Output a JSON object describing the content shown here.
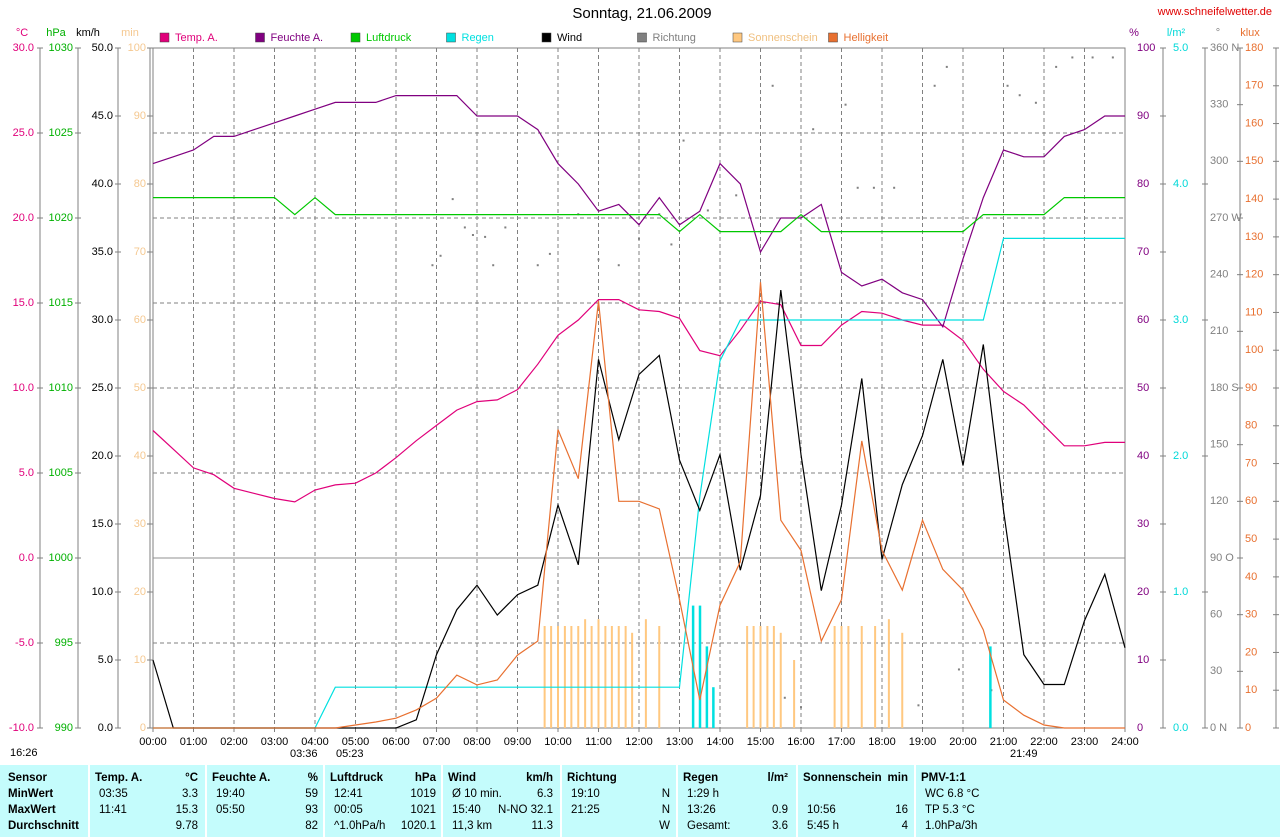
{
  "chart_data": {
    "type": "line",
    "title": "Sonntag, 21.06.2009",
    "source": "www.schneifelwetter.de",
    "annotations": [
      "16:26",
      "03:36",
      "05:23",
      "21:49"
    ],
    "grid": true,
    "x": [
      0,
      0.5,
      1,
      1.5,
      2,
      2.5,
      3,
      3.5,
      4,
      4.5,
      5,
      5.5,
      6,
      6.5,
      7,
      7.5,
      8,
      8.5,
      9,
      9.5,
      10,
      10.5,
      11,
      11.5,
      12,
      12.5,
      13,
      13.5,
      14,
      14.5,
      15,
      15.5,
      16,
      16.5,
      17,
      17.5,
      18,
      18.5,
      19,
      19.5,
      20,
      20.5,
      21,
      21.5,
      22,
      22.5,
      23,
      23.5,
      24
    ],
    "xlim": [
      0,
      24
    ],
    "xticks": [
      {
        "value": 0,
        "label": "00:00"
      },
      {
        "value": 1,
        "label": "01:00"
      },
      {
        "value": 2,
        "label": "02:00"
      },
      {
        "value": 3,
        "label": "03:00"
      },
      {
        "value": 4,
        "label": "04:00"
      },
      {
        "value": 5,
        "label": "05:00"
      },
      {
        "value": 6,
        "label": "06:00"
      },
      {
        "value": 7,
        "label": "07:00"
      },
      {
        "value": 8,
        "label": "08:00"
      },
      {
        "value": 9,
        "label": "09:00"
      },
      {
        "value": 10,
        "label": "10:00"
      },
      {
        "value": 11,
        "label": "11:00"
      },
      {
        "value": 12,
        "label": "12:00"
      },
      {
        "value": 13,
        "label": "13:00"
      },
      {
        "value": 14,
        "label": "14:00"
      },
      {
        "value": 15,
        "label": "15:00"
      },
      {
        "value": 16,
        "label": "16:00"
      },
      {
        "value": 17,
        "label": "17:00"
      },
      {
        "value": 18,
        "label": "18:00"
      },
      {
        "value": 19,
        "label": "19:00"
      },
      {
        "value": 20,
        "label": "20:00"
      },
      {
        "value": 21,
        "label": "21:00"
      },
      {
        "value": 22,
        "label": "22:00"
      },
      {
        "value": 23,
        "label": "23:00"
      },
      {
        "value": 24,
        "label": "24:00"
      }
    ],
    "axes": [
      {
        "id": "temp",
        "label": "°C",
        "color": "#e0007a",
        "lim": [
          -10,
          30
        ],
        "ticks": [
          {
            "value": -10,
            "label": "-10.0"
          },
          {
            "value": -5,
            "label": "-5.0"
          },
          {
            "value": 0,
            "label": "0.0"
          },
          {
            "value": 5,
            "label": "5.0"
          },
          {
            "value": 10,
            "label": "10.0"
          },
          {
            "value": 15,
            "label": "15.0"
          },
          {
            "value": 20,
            "label": "20.0"
          },
          {
            "value": 25,
            "label": "25.0"
          },
          {
            "value": 30,
            "label": "30.0"
          }
        ]
      },
      {
        "id": "pressure",
        "label": "hPa",
        "color": "#00b000",
        "lim": [
          990,
          1030
        ],
        "ticks": [
          990,
          995,
          1000,
          1005,
          1010,
          1015,
          1020,
          1025,
          1030
        ]
      },
      {
        "id": "wind",
        "label": "km/h",
        "color": "#000000",
        "lim": [
          0,
          50
        ],
        "ticks": [
          {
            "value": 0,
            "label": "0.0"
          },
          {
            "value": 5,
            "label": "5.0"
          },
          {
            "value": 10,
            "label": "10.0"
          },
          {
            "value": 15,
            "label": "15.0"
          },
          {
            "value": 20,
            "label": "20.0"
          },
          {
            "value": 25,
            "label": "25.0"
          },
          {
            "value": 30,
            "label": "30.0"
          },
          {
            "value": 35,
            "label": "35.0"
          },
          {
            "value": 40,
            "label": "40.0"
          },
          {
            "value": 45,
            "label": "45.0"
          },
          {
            "value": 50,
            "label": "50.0"
          }
        ]
      },
      {
        "id": "sun",
        "label": "min",
        "color": "#f5c890",
        "lim": [
          0,
          100
        ],
        "ticks": [
          0,
          10,
          20,
          30,
          40,
          50,
          60,
          70,
          80,
          90,
          100
        ]
      },
      {
        "id": "humidity",
        "label": "%",
        "color": "#800080",
        "lim": [
          0,
          100
        ],
        "ticks": [
          0,
          10,
          20,
          30,
          40,
          50,
          60,
          70,
          80,
          90,
          100
        ]
      },
      {
        "id": "rain",
        "label": "l/m²",
        "color": "#00d8d8",
        "lim": [
          0,
          5
        ],
        "ticks": [
          {
            "value": 0,
            "label": "0.0"
          },
          {
            "value": 1,
            "label": "1.0"
          },
          {
            "value": 2,
            "label": "2.0"
          },
          {
            "value": 3,
            "label": "3.0"
          },
          {
            "value": 4,
            "label": "4.0"
          },
          {
            "value": 5,
            "label": "5.0"
          }
        ]
      },
      {
        "id": "dir",
        "label": "°",
        "color": "#808080",
        "lim": [
          0,
          360
        ],
        "ticks": [
          {
            "value": 0,
            "label": "0 N"
          },
          30,
          60,
          {
            "value": 90,
            "label": "90 O"
          },
          120,
          150,
          {
            "value": 180,
            "label": "180 S"
          },
          210,
          240,
          {
            "value": 270,
            "label": "270 W"
          },
          300,
          330,
          {
            "value": 360,
            "label": "360 N"
          }
        ]
      },
      {
        "id": "bright",
        "label": "klux",
        "color": "#e87030",
        "lim": [
          0,
          180
        ],
        "ticks": [
          0,
          10,
          20,
          30,
          40,
          50,
          60,
          70,
          80,
          90,
          100,
          110,
          120,
          130,
          140,
          150,
          160,
          170,
          180
        ]
      }
    ],
    "series": [
      {
        "name": "Temp. A.",
        "color": "#e0007a",
        "axis": "temp",
        "style": "line",
        "values": [
          7.5,
          6.4,
          5.3,
          4.9,
          4.1,
          3.8,
          3.5,
          3.3,
          4.0,
          4.3,
          4.4,
          5.0,
          5.9,
          6.9,
          7.8,
          8.7,
          9.2,
          9.3,
          9.9,
          11.4,
          13.1,
          14.0,
          15.2,
          15.2,
          14.6,
          14.5,
          14.1,
          12.2,
          11.9,
          13.4,
          15.1,
          14.9,
          12.5,
          12.5,
          13.7,
          14.5,
          14.4,
          14.0,
          13.7,
          13.7,
          12.8,
          11.1,
          9.8,
          9.0,
          7.8,
          6.6,
          6.6,
          6.8,
          6.8
        ]
      },
      {
        "name": "Feuchte A.",
        "color": "#800080",
        "axis": "humidity",
        "style": "line",
        "values": [
          83,
          84,
          85,
          87,
          87,
          88,
          89,
          90,
          91,
          92,
          92,
          92,
          93,
          93,
          93,
          93,
          90,
          90,
          90,
          88,
          83,
          80,
          76,
          77,
          74,
          78,
          74,
          76,
          83,
          80,
          70,
          75,
          75,
          77,
          67,
          65,
          66,
          64,
          63,
          59,
          69,
          78,
          85,
          84,
          84,
          87,
          88,
          90,
          90
        ]
      },
      {
        "name": "Luftdruck",
        "color": "#00c800",
        "axis": "pressure",
        "style": "line",
        "values": [
          1021.2,
          1021.2,
          1021.2,
          1021.2,
          1021.2,
          1021.2,
          1021.2,
          1020.2,
          1021.2,
          1020.2,
          1020.2,
          1020.2,
          1020.2,
          1020.2,
          1020.2,
          1020.2,
          1020.2,
          1020.2,
          1020.2,
          1020.2,
          1020.2,
          1020.2,
          1020.2,
          1020.2,
          1020.2,
          1020.2,
          1019.2,
          1020.2,
          1019.2,
          1019.2,
          1019.2,
          1019.2,
          1020.2,
          1019.2,
          1019.2,
          1019.2,
          1019.2,
          1019.2,
          1019.2,
          1019.2,
          1019.2,
          1020.2,
          1020.2,
          1020.2,
          1020.2,
          1021.2,
          1021.2,
          1021.2,
          1021.2
        ]
      },
      {
        "name": "Regen",
        "color": "#00e0e0",
        "axis": "rain",
        "style": "line",
        "values": [
          0,
          0,
          0,
          0,
          0,
          0,
          0,
          0,
          0,
          0.3,
          0.3,
          0.3,
          0.3,
          0.3,
          0.3,
          0.3,
          0.3,
          0.3,
          0.3,
          0.3,
          0.3,
          0.3,
          0.3,
          0.3,
          0.3,
          0.3,
          0.3,
          1.7,
          2.7,
          3.0,
          3.0,
          3.0,
          3.0,
          3.0,
          3.0,
          3.0,
          3.0,
          3.0,
          3.0,
          3.0,
          3.0,
          3.0,
          3.6,
          3.6,
          3.6,
          3.6,
          3.6,
          3.6,
          3.6
        ],
        "bars_x": [
          13.33,
          13.5,
          13.67,
          13.83,
          20.67
        ],
        "bars": [
          0.9,
          0.9,
          0.6,
          0.3,
          0.6
        ]
      },
      {
        "name": "Wind",
        "color": "#000000",
        "axis": "wind",
        "style": "line",
        "values": [
          5.0,
          0,
          0,
          0,
          0,
          0,
          0,
          0,
          0,
          0,
          0,
          0,
          0,
          0.6,
          5.4,
          8.7,
          10.5,
          8.3,
          9.8,
          10.5,
          16.4,
          12.0,
          27.1,
          21.2,
          26.0,
          27.4,
          19.7,
          16.0,
          20.1,
          11.6,
          17.1,
          32.2,
          20.1,
          10.1,
          16.4,
          25.7,
          12.4,
          17.9,
          21.5,
          27.1,
          19.3,
          28.2,
          16.0,
          5.4,
          3.2,
          3.2,
          7.9,
          11.3,
          5.9
        ]
      },
      {
        "name": "Richtung",
        "color": "#808080",
        "axis": "dir",
        "style": "scatter",
        "x": [
          6.9,
          7.1,
          7.4,
          7.7,
          7.9,
          8.2,
          8.4,
          8.7,
          9.5,
          9.8,
          10.5,
          11.0,
          11.5,
          12.0,
          12.5,
          12.8,
          13.1,
          13.7,
          14.4,
          15.3,
          15.6,
          16.0,
          16.3,
          17.1,
          17.4,
          17.8,
          18.3,
          18.9,
          19.3,
          19.6,
          19.9,
          20.7,
          21.1,
          21.4,
          21.8,
          22.3,
          22.7,
          23.2,
          23.7
        ],
        "values": [
          245,
          250,
          280,
          265,
          261,
          260,
          245,
          265,
          245,
          251,
          272,
          248,
          245,
          259,
          272,
          256,
          311,
          274,
          282,
          340,
          16,
          11,
          317,
          330,
          286,
          286,
          286,
          12,
          340,
          350,
          31,
          20,
          340,
          335,
          331,
          350,
          355,
          355,
          355
        ]
      },
      {
        "name": "Sonnenschein",
        "color": "#ffc880",
        "axis": "sun",
        "style": "bar",
        "x": [
          9.67,
          9.83,
          10.0,
          10.17,
          10.33,
          10.5,
          10.67,
          10.83,
          11.0,
          11.17,
          11.33,
          11.5,
          11.67,
          11.83,
          12.17,
          12.5,
          14.67,
          14.83,
          15.0,
          15.17,
          15.33,
          15.5,
          15.83,
          16.83,
          17.0,
          17.17,
          17.5,
          17.83,
          18.17,
          18.5
        ],
        "values": [
          15,
          15,
          15,
          15,
          15,
          15,
          16,
          15,
          16,
          15,
          15,
          15,
          15,
          14,
          16,
          15,
          15,
          15,
          15,
          15,
          15,
          14,
          10,
          15,
          15,
          15,
          15,
          15,
          16,
          14
        ]
      },
      {
        "name": "Helligkeit",
        "color": "#e87030",
        "axis": "bright",
        "style": "line",
        "values": [
          0,
          0,
          0,
          0,
          0,
          0,
          0,
          0,
          0,
          0,
          0.8,
          1.6,
          2.6,
          4.8,
          7.9,
          14,
          11.4,
          12.7,
          19.3,
          23,
          79,
          66,
          113,
          60,
          60,
          58,
          34,
          7.4,
          32.5,
          44,
          118,
          55,
          47,
          23,
          34,
          76,
          47,
          36.5,
          55,
          42,
          36.5,
          26,
          7.4,
          3.4,
          0.8,
          0,
          0,
          0,
          0
        ]
      }
    ]
  },
  "table": {
    "columns": [
      {
        "title": "Sensor"
      },
      {
        "title": "Temp. A.",
        "unit": "°C"
      },
      {
        "title": "Feuchte A.",
        "unit": "%"
      },
      {
        "title": "Luftdruck",
        "unit": "hPa"
      },
      {
        "title": "Wind",
        "unit": "km/h"
      },
      {
        "title": "Richtung"
      },
      {
        "title": "Regen",
        "unit": "l/m²"
      },
      {
        "title": "Sonnenschein",
        "unit": "min"
      },
      {
        "title": "PMV-1:1"
      }
    ],
    "rows": [
      {
        "label": "MinWert",
        "cells": [
          [
            "03:35",
            "3.3"
          ],
          [
            "19:40",
            "59"
          ],
          [
            "12:41",
            "1019"
          ],
          [
            "Ø 10 min.",
            "6.3"
          ],
          [
            "19:10",
            "N"
          ],
          [
            "1:29 h",
            null
          ],
          [
            null,
            null
          ],
          [
            "WC 6.8 °C",
            null
          ]
        ]
      },
      {
        "label": "MaxWert",
        "cells": [
          [
            "11:41",
            "15.3"
          ],
          [
            "05:50",
            "93"
          ],
          [
            "00:05",
            "1021"
          ],
          [
            "15:40",
            "N-NO 32.1"
          ],
          [
            "21:25",
            "N"
          ],
          [
            "13:26",
            "0.9"
          ],
          [
            "10:56",
            "16"
          ],
          [
            "TP 5.3 °C",
            null
          ]
        ]
      },
      {
        "label": "Durchschnitt",
        "cells": [
          [
            null,
            "9.78"
          ],
          [
            null,
            "82"
          ],
          [
            "^1.0hPa/h",
            "1020.1"
          ],
          [
            "11,3 km",
            "11.3"
          ],
          [
            null,
            "W"
          ],
          [
            "Gesamt:",
            "3.6"
          ],
          [
            "5:45 h",
            "4"
          ],
          [
            "1.0hPa/3h",
            null
          ]
        ]
      }
    ]
  }
}
